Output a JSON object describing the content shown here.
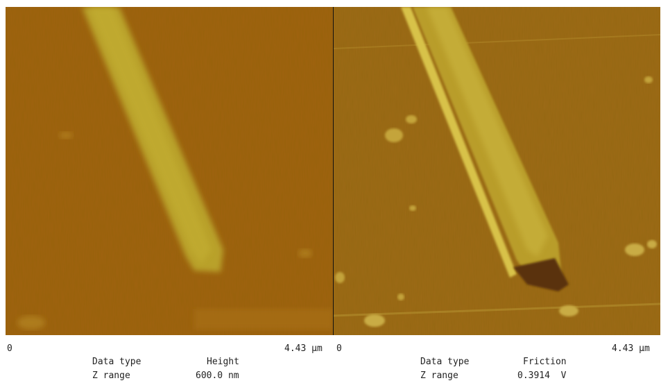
{
  "panels": [
    {
      "axis": {
        "start": "0",
        "end": "4.43 µm"
      },
      "info": {
        "data_type_label": "Data type",
        "data_type": "Height",
        "z_range_label": "Z range",
        "z_range": "600.0 nm"
      }
    },
    {
      "axis": {
        "start": "0",
        "end": "4.43 µm"
      },
      "info": {
        "data_type_label": "Data type",
        "data_type": "Friction",
        "z_range_label": "Z range",
        "z_range": "0.3914  V"
      }
    }
  ]
}
